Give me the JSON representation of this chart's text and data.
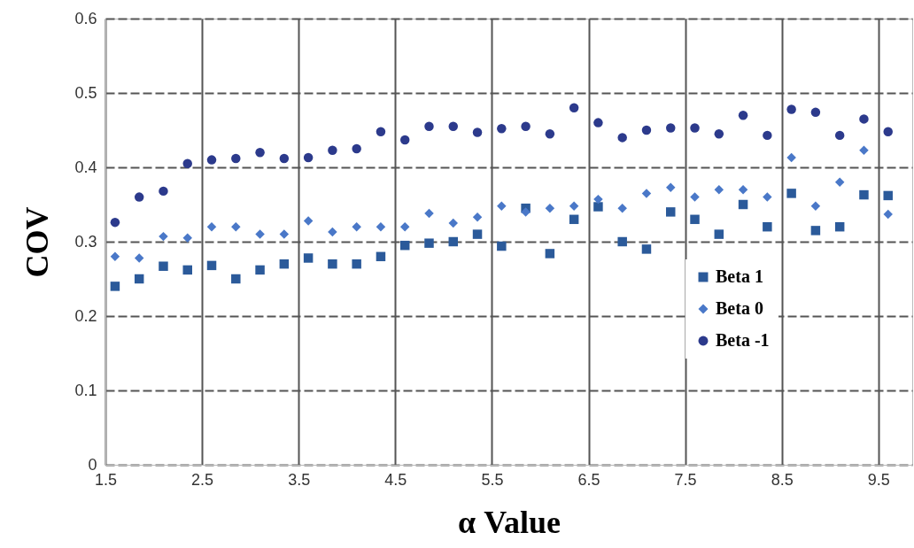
{
  "chart_data": {
    "type": "scatter",
    "xlabel": "α Value",
    "ylabel": "COV",
    "x": [
      1.6,
      1.85,
      2.1,
      2.35,
      2.6,
      2.85,
      3.1,
      3.35,
      3.6,
      3.85,
      4.1,
      4.35,
      4.6,
      4.85,
      5.1,
      5.35,
      5.6,
      5.85,
      6.1,
      6.35,
      6.6,
      6.85,
      7.1,
      7.35,
      7.6,
      7.85,
      8.1,
      8.35,
      8.6,
      8.85,
      9.1,
      9.35,
      9.6
    ],
    "xlim": [
      1.5,
      9.85
    ],
    "xticks": [
      1.5,
      2.5,
      3.5,
      4.5,
      5.5,
      6.5,
      7.5,
      8.5,
      9.5
    ],
    "ylim": [
      0,
      0.6
    ],
    "yticks": [
      0,
      0.1,
      0.2,
      0.3,
      0.4,
      0.5,
      0.6
    ],
    "grid": true,
    "legend": "right",
    "series": [
      {
        "name": "Beta 1",
        "color": "#2b5a9a",
        "marker": "square",
        "values": [
          0.24,
          0.25,
          0.267,
          0.262,
          0.268,
          0.25,
          0.262,
          0.27,
          0.278,
          0.27,
          0.27,
          0.28,
          0.295,
          0.298,
          0.3,
          0.31,
          0.294,
          0.345,
          0.284,
          0.33,
          0.347,
          0.3,
          0.29,
          0.34,
          0.33,
          0.31,
          0.35,
          0.32,
          0.365,
          0.315,
          0.32,
          0.363,
          0.362
        ]
      },
      {
        "name": "Beta 0",
        "color": "#4a78c8",
        "marker": "diamond",
        "values": [
          0.28,
          0.278,
          0.307,
          0.305,
          0.32,
          0.32,
          0.31,
          0.31,
          0.328,
          0.313,
          0.32,
          0.32,
          0.32,
          0.338,
          0.325,
          0.333,
          0.348,
          0.34,
          0.345,
          0.348,
          0.357,
          0.345,
          0.365,
          0.373,
          0.36,
          0.37,
          0.37,
          0.36,
          0.413,
          0.348,
          0.38,
          0.423,
          0.337
        ]
      },
      {
        "name": "Beta -1",
        "color": "#2c3a8c",
        "marker": "circle",
        "values": [
          0.326,
          0.36,
          0.368,
          0.405,
          0.41,
          0.412,
          0.42,
          0.412,
          0.413,
          0.423,
          0.425,
          0.448,
          0.437,
          0.455,
          0.455,
          0.447,
          0.452,
          0.455,
          0.445,
          0.48,
          0.46,
          0.44,
          0.45,
          0.453,
          0.453,
          0.445,
          0.47,
          0.443,
          0.478,
          0.474,
          0.443,
          0.465,
          0.448
        ]
      }
    ]
  }
}
